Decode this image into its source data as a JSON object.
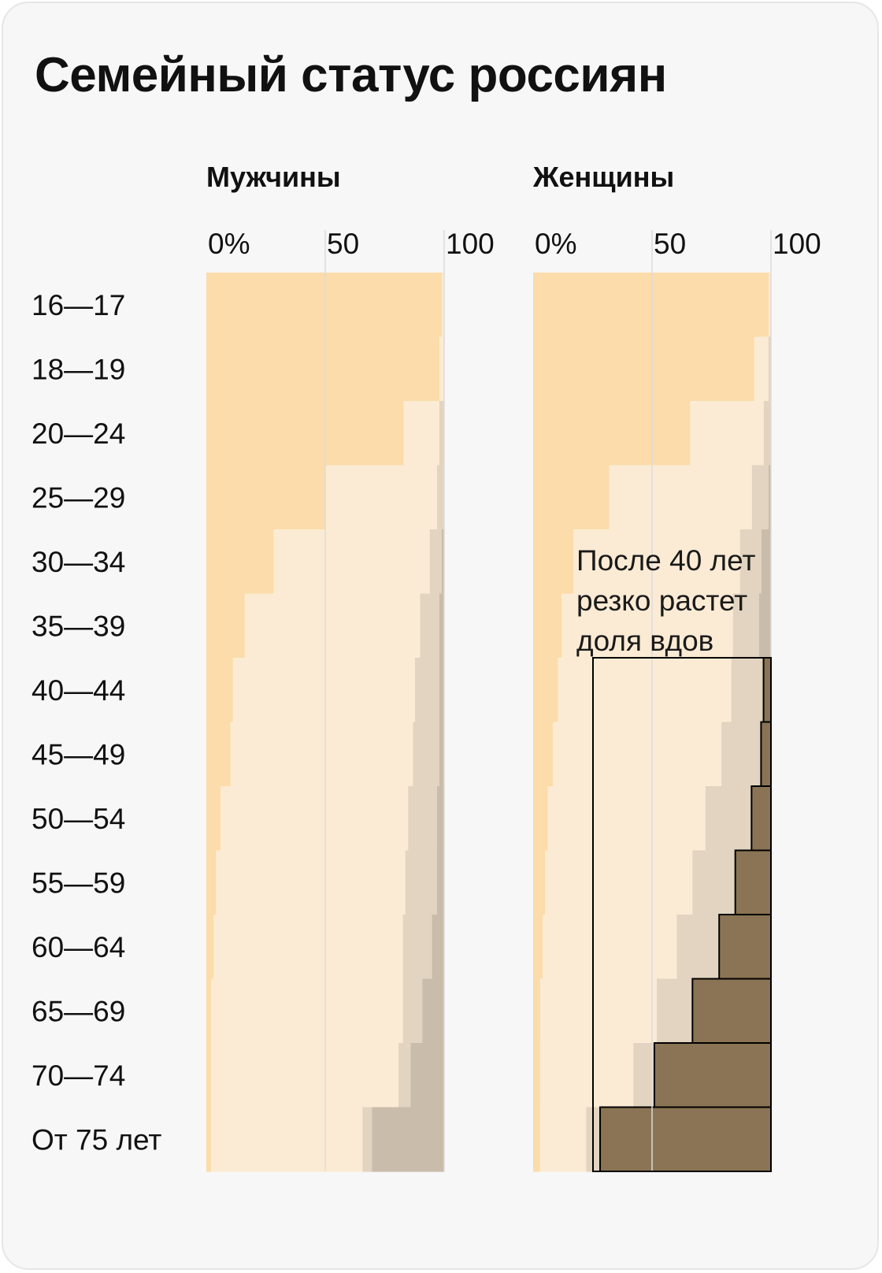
{
  "title": "Семейный статус россиян",
  "annotation": "После 40 лет\nрезко растет\nдоля вдов",
  "colors": {
    "never_married": "#fbdcaa",
    "married": "#fbebd4",
    "divorced": "#e2d4c0",
    "widowed_men": "#c9bcab",
    "widowed_women_highlight": "#8a7455",
    "gridline": "#dcdcdc",
    "text": "#111111"
  },
  "chart_data": {
    "type": "bar",
    "stacked": true,
    "orientation": "horizontal",
    "categories": [
      "16—17",
      "18—19",
      "20—24",
      "25—29",
      "30—34",
      "35—39",
      "40—44",
      "45—49",
      "50—54",
      "55—59",
      "60—64",
      "65—69",
      "70—74",
      "От 75 лет"
    ],
    "x_ticks": [
      "0%",
      "50",
      "100"
    ],
    "xlim": [
      0,
      100
    ],
    "grid": true,
    "panels": [
      {
        "title": "Мужчины",
        "series": [
          {
            "values": [
              99,
              98,
              83,
              50,
              28,
              16,
              11,
              10,
              6,
              4,
              3,
              2,
              2,
              2
            ]
          },
          {
            "values": [
              1,
              2,
              15,
              47,
              65,
              73,
              75,
              76,
              78,
              78,
              78,
              79,
              78,
              63
            ]
          },
          {
            "values": [
              0,
              0,
              2,
              3,
              5,
              8,
              10,
              11,
              12,
              13,
              12,
              8,
              5,
              4
            ]
          },
          {
            "values": [
              0,
              0,
              0,
              0,
              1,
              2,
              2,
              2,
              3,
              3,
              5,
              9,
              14,
              30
            ]
          }
        ]
      },
      {
        "title": "Женщины",
        "series": [
          {
            "values": [
              99,
              93,
              66,
              32,
              17,
              12,
              10,
              8,
              6,
              5,
              4,
              3,
              3,
              3
            ]
          },
          {
            "values": [
              1,
              6,
              31,
              60,
              70,
              72,
              70,
              68,
              65,
              62,
              57,
              49,
              40,
              20
            ]
          },
          {
            "values": [
              0,
              1,
              3,
              7,
              9,
              11,
              13,
              16,
              19,
              18,
              18,
              15,
              9,
              6
            ]
          },
          {
            "values": [
              0,
              0,
              0,
              1,
              4,
              5,
              3,
              4,
              8,
              15,
              22,
              33,
              50,
              74
            ]
          }
        ]
      }
    ]
  }
}
